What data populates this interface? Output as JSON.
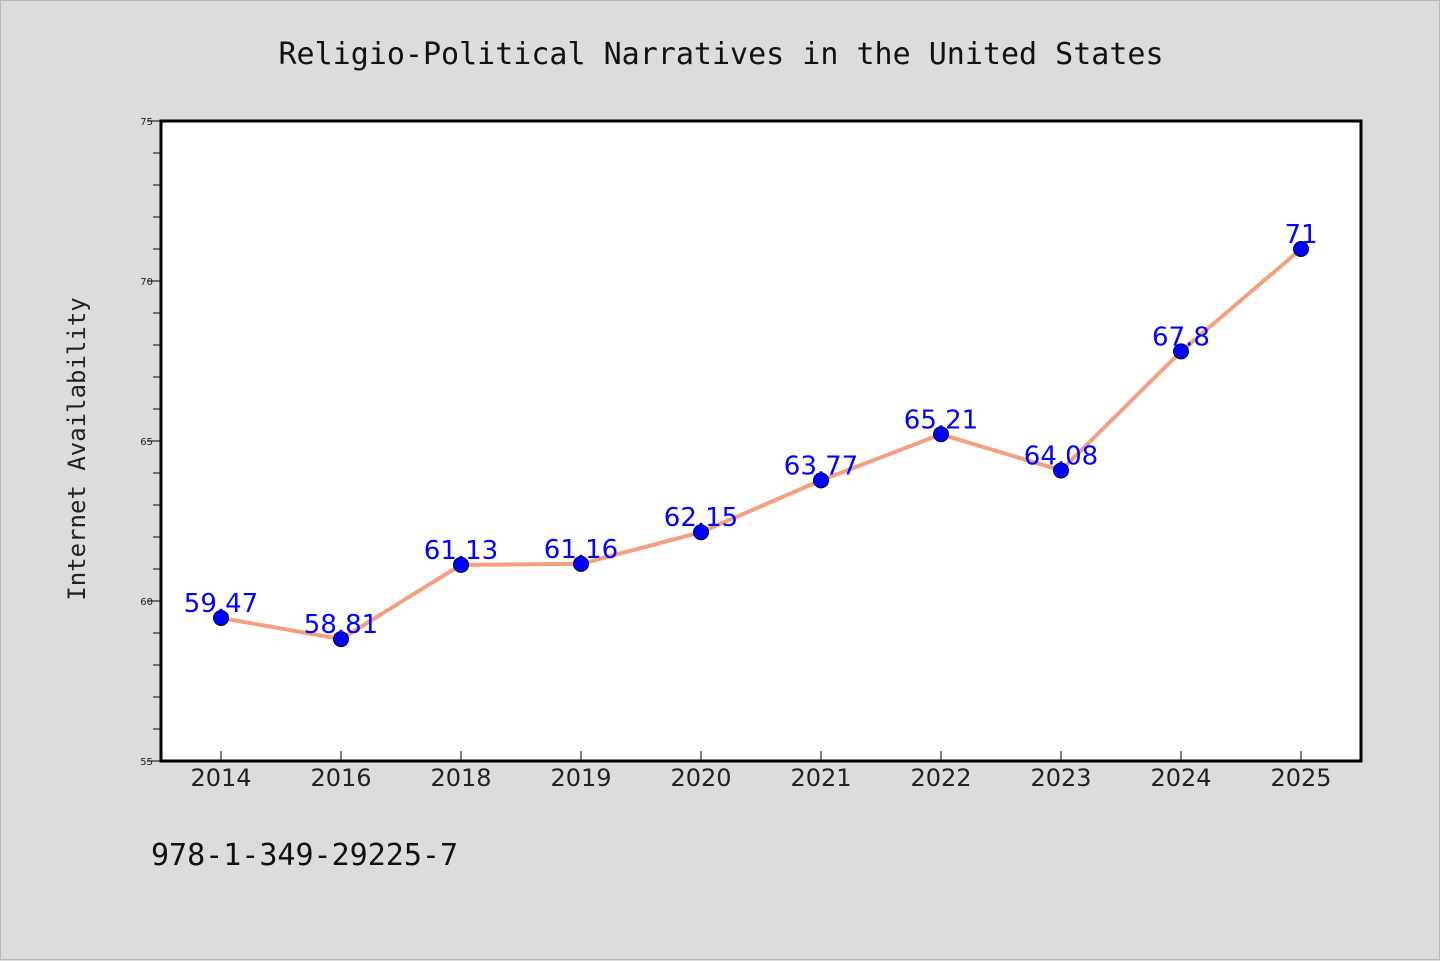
{
  "chart_data": {
    "type": "line",
    "title": "Religio-Political Narratives in the United States",
    "xlabel": "",
    "ylabel": "Internet Availability",
    "categories": [
      "2014",
      "2016",
      "2018",
      "2019",
      "2020",
      "2021",
      "2022",
      "2023",
      "2024",
      "2025"
    ],
    "series": [
      {
        "values": [
          59.47,
          58.81,
          61.13,
          61.16,
          62.15,
          63.77,
          65.21,
          64.08,
          67.8,
          71
        ]
      }
    ],
    "data_labels": [
      "59.47",
      "58.81",
      "61.13",
      "61.16",
      "62.15",
      "63.77",
      "65.21",
      "64.08",
      "67.8",
      "71"
    ],
    "ylim": [
      55,
      75
    ],
    "yticks": [
      55,
      60,
      65,
      70,
      75
    ],
    "grid": false,
    "line_color": "#f4a07e",
    "marker_color": "#0000ff",
    "label_color": "#0000ff",
    "background": "#dcdcdc"
  },
  "footer": {
    "isbn": "978-1-349-29225-7"
  }
}
